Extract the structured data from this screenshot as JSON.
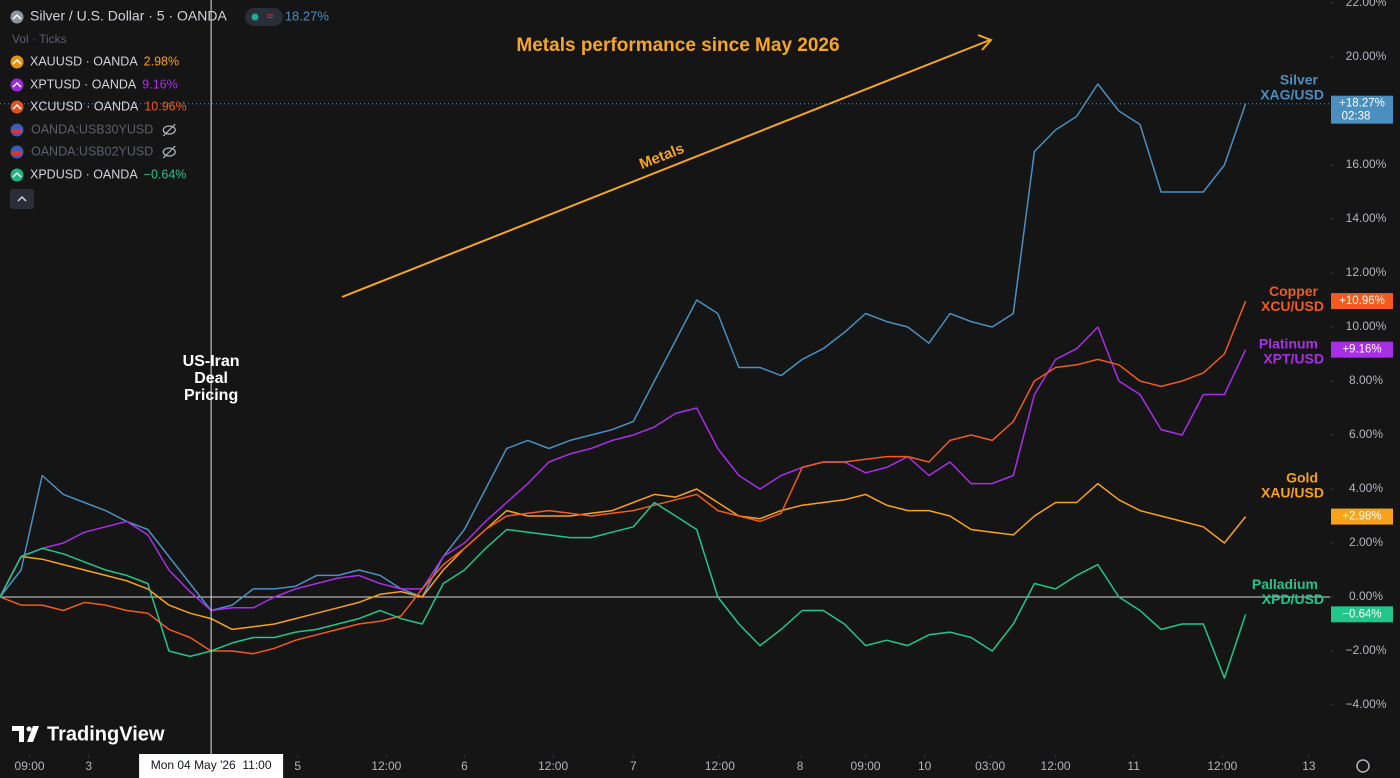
{
  "chart_data": {
    "type": "line",
    "title": "Metals performance since May 2026",
    "xlim": [
      0,
      63
    ],
    "ylim": [
      -5.85,
      22.11
    ],
    "yticks": [
      {
        "value": -4,
        "label": "−4.00%"
      },
      {
        "value": -2,
        "label": "−2.00%"
      },
      {
        "value": 0,
        "label": "0.00%"
      },
      {
        "value": 2,
        "label": "2.00%"
      },
      {
        "value": 4,
        "label": "4.00%"
      },
      {
        "value": 6,
        "label": "6.00%"
      },
      {
        "value": 8,
        "label": "8.00%"
      },
      {
        "value": 10,
        "label": "10.00%"
      },
      {
        "value": 12,
        "label": "12.00%"
      },
      {
        "value": 14,
        "label": "14.00%"
      },
      {
        "value": 16,
        "label": "16.00%"
      },
      {
        "value": 18,
        "label": "18.00%"
      },
      {
        "value": 20,
        "label": "20.00%"
      },
      {
        "value": 22,
        "label": "22.00%"
      }
    ],
    "xticks": [
      {
        "value": 1.4,
        "label": "09:00"
      },
      {
        "value": 4.2,
        "label": "3"
      },
      {
        "value": 14.1,
        "label": "5"
      },
      {
        "value": 18.3,
        "label": "12:00"
      },
      {
        "value": 22.0,
        "label": "6"
      },
      {
        "value": 26.2,
        "label": "12:00"
      },
      {
        "value": 30.0,
        "label": "7"
      },
      {
        "value": 34.1,
        "label": "12:00"
      },
      {
        "value": 37.9,
        "label": "8"
      },
      {
        "value": 41.0,
        "label": "09:00"
      },
      {
        "value": 43.8,
        "label": "10"
      },
      {
        "value": 46.9,
        "label": "03:00"
      },
      {
        "value": 50.0,
        "label": "12:00"
      },
      {
        "value": 53.7,
        "label": "11"
      },
      {
        "value": 57.9,
        "label": "12:00"
      },
      {
        "value": 62.0,
        "label": "13"
      }
    ],
    "crosshair": {
      "value": 10.0,
      "label": "Mon 04 May '26  11:00"
    },
    "volume_legend": "Vol · Ticks",
    "annotations": {
      "trend": "Metals",
      "event": [
        "US-Iran",
        "Deal",
        "Pricing"
      ]
    },
    "brand": "TradingView",
    "hidden_series": [
      "OANDA:USB30YUSD",
      "OANDA:USB02YUSD"
    ],
    "series": [
      {
        "name": "Silver",
        "symbol": "XAG/USD",
        "legend": "Silver / U.S. Dollar · 5 · OANDA",
        "color": "#4a8fbf",
        "change": {
          "value": 18.27,
          "label": "18.27%"
        },
        "tag": {
          "value": 18.27,
          "label": "+18.27%"
        },
        "tag_time": "02:38",
        "values": [
          0,
          1,
          4.5,
          3.8,
          3.5,
          3.2,
          2.8,
          2.5,
          1.5,
          0.5,
          -0.5,
          -0.3,
          0.3,
          0.3,
          0.4,
          0.8,
          0.8,
          1,
          0.8,
          0.3,
          0,
          1.5,
          2.5,
          4,
          5.5,
          5.8,
          5.5,
          5.8,
          6,
          6.2,
          6.5,
          8,
          9.5,
          11,
          10.5,
          8.5,
          8.5,
          8.2,
          8.8,
          9.2,
          9.8,
          10.5,
          10.2,
          10,
          9.4,
          10.5,
          10.2,
          10,
          10.5,
          16.5,
          17.3,
          17.8,
          19,
          18,
          17.5,
          15,
          15,
          15,
          16,
          18.27
        ]
      },
      {
        "name": "Gold",
        "symbol": "XAU/USD",
        "legend": "XAUUSD · OANDA",
        "color": "#f7a21b",
        "change": {
          "value": 2.98,
          "label": "2.98%"
        },
        "tag": {
          "value": 2.98,
          "label": "+2.98%"
        },
        "values": [
          0,
          1.5,
          1.4,
          1.2,
          1,
          0.8,
          0.6,
          0.3,
          -0.3,
          -0.6,
          -0.8,
          -1.2,
          -1.1,
          -1,
          -0.8,
          -0.6,
          -0.4,
          -0.2,
          0.1,
          0.2,
          0,
          1,
          1.8,
          2.5,
          3.2,
          3,
          3,
          3,
          3.1,
          3.2,
          3.5,
          3.8,
          3.7,
          4,
          3.5,
          3,
          2.9,
          3.2,
          3.4,
          3.5,
          3.6,
          3.8,
          3.4,
          3.2,
          3.2,
          3,
          2.5,
          2.4,
          2.3,
          3,
          3.5,
          3.5,
          4.2,
          3.6,
          3.2,
          3,
          2.8,
          2.6,
          2,
          2.98
        ]
      },
      {
        "name": "Platinum",
        "symbol": "XPT/USD",
        "legend": "XPTUSD · OANDA",
        "color": "#a92fe6",
        "change": {
          "value": 9.16,
          "label": "9.16%"
        },
        "tag": {
          "value": 9.16,
          "label": "+9.16%"
        },
        "values": [
          0,
          1.5,
          1.8,
          2,
          2.4,
          2.6,
          2.8,
          2.3,
          1,
          0.2,
          -0.5,
          -0.4,
          -0.4,
          0,
          0.3,
          0.5,
          0.7,
          0.8,
          0.5,
          0.3,
          0.3,
          1.5,
          2,
          2.8,
          3.5,
          4.2,
          5,
          5.3,
          5.5,
          5.8,
          6,
          6.3,
          6.8,
          7,
          5.5,
          4.5,
          4,
          4.5,
          4.8,
          5,
          5,
          4.6,
          4.8,
          5.2,
          4.5,
          5,
          4.2,
          4.2,
          4.5,
          7.5,
          8.8,
          9.2,
          10,
          8,
          7.5,
          6.2,
          6,
          7.5,
          7.5,
          9.16
        ]
      },
      {
        "name": "Copper",
        "symbol": "XCU/USD",
        "legend": "XCUUSD · OANDA",
        "color": "#f25a1e",
        "change": {
          "value": 10.96,
          "label": "10.96%"
        },
        "tag": {
          "value": 10.96,
          "label": "+10.96%"
        },
        "values": [
          0,
          -0.3,
          -0.3,
          -0.5,
          -0.2,
          -0.3,
          -0.5,
          -0.6,
          -1.2,
          -1.5,
          -2,
          -2,
          -2.1,
          -1.9,
          -1.6,
          -1.4,
          -1.2,
          -1,
          -0.9,
          -0.7,
          0.3,
          1.2,
          1.8,
          2.5,
          3,
          3.1,
          3.2,
          3.1,
          3,
          3.1,
          3.2,
          3.4,
          3.6,
          3.8,
          3.2,
          3,
          2.8,
          3.1,
          4.8,
          5,
          5,
          5.1,
          5.2,
          5.2,
          5,
          5.8,
          6,
          5.8,
          6.5,
          8,
          8.5,
          8.6,
          8.8,
          8.6,
          8,
          7.8,
          8,
          8.3,
          9,
          10.96
        ]
      },
      {
        "name": "Palladium",
        "symbol": "XPD/USD",
        "legend": "XPDUSD · OANDA",
        "color": "#22c58b",
        "change": {
          "value": -0.64,
          "label": "−0.64%"
        },
        "tag": {
          "value": -0.64,
          "label": "−0.64%"
        },
        "values": [
          0,
          1.5,
          1.8,
          1.6,
          1.3,
          1,
          0.8,
          0.5,
          -2,
          -2.2,
          -2,
          -1.7,
          -1.5,
          -1.5,
          -1.3,
          -1.2,
          -1,
          -0.8,
          -0.5,
          -0.8,
          -1,
          0.5,
          1,
          1.8,
          2.5,
          2.4,
          2.3,
          2.2,
          2.2,
          2.4,
          2.6,
          3.5,
          3,
          2.5,
          0,
          -1,
          -1.8,
          -1.2,
          -0.5,
          -0.5,
          -1,
          -1.8,
          -1.6,
          -1.8,
          -1.4,
          -1.3,
          -1.5,
          -2,
          -1,
          0.5,
          0.3,
          0.8,
          1.2,
          0,
          -0.5,
          -1.2,
          -1,
          -1,
          -3,
          -0.64
        ]
      }
    ]
  }
}
